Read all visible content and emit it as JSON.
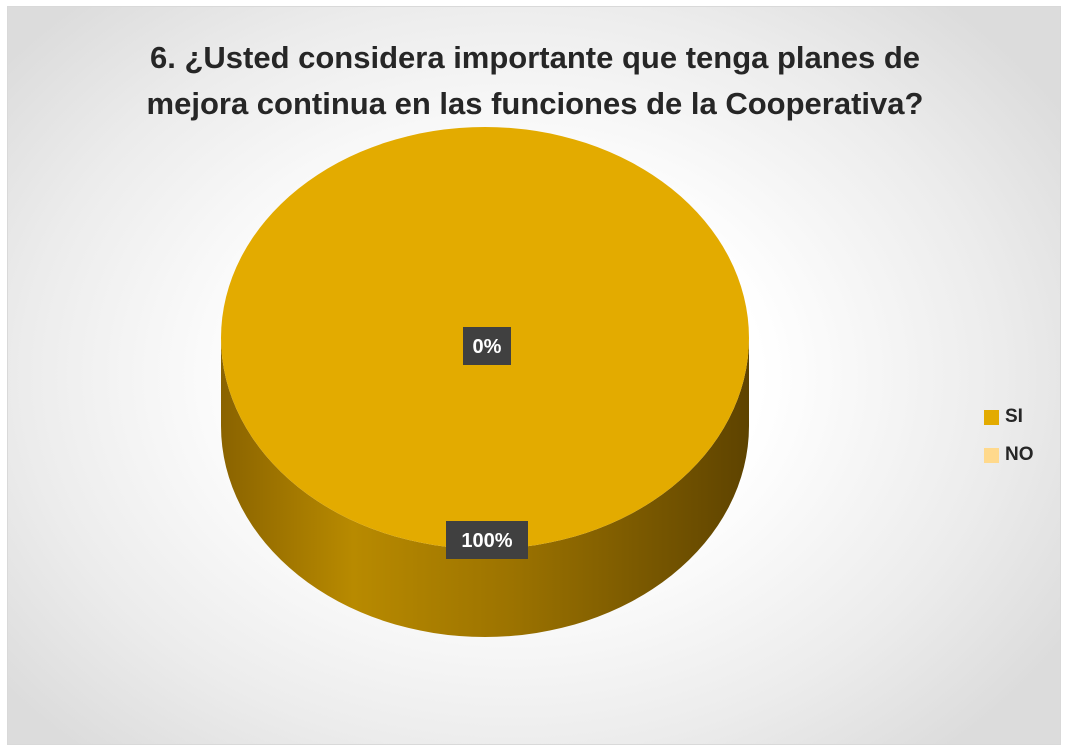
{
  "chart_data": {
    "type": "pie",
    "style": "3d",
    "title": "6. ¿Usted considera importante que tenga planes de mejora continua en las funciones de la Cooperativa?",
    "title_lines": [
      "6. ¿Usted considera importante que tenga planes de",
      "mejora continua en las funciones de la Cooperativa?"
    ],
    "categories": [
      "SI",
      "NO"
    ],
    "values": [
      100,
      0
    ],
    "data_labels": [
      "100%",
      "0%"
    ],
    "colors": [
      "#e3ab00",
      "#ffd98c"
    ],
    "legend_position": "right"
  }
}
